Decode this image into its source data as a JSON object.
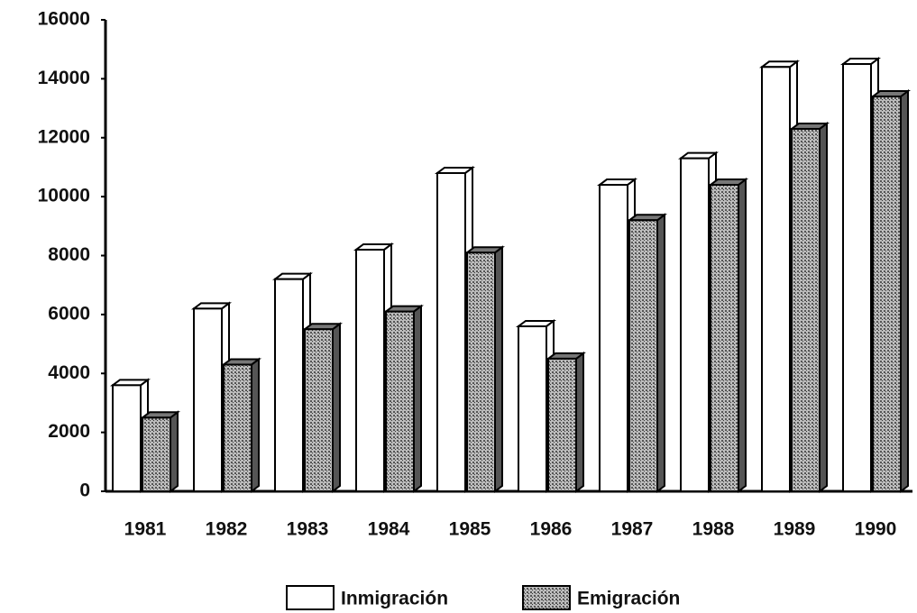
{
  "chart_data": {
    "type": "bar",
    "categories": [
      "1981",
      "1982",
      "1983",
      "1984",
      "1985",
      "1986",
      "1987",
      "1988",
      "1989",
      "1990"
    ],
    "series": [
      {
        "name": "Inmigración",
        "color": "#ffffff",
        "values": [
          3600,
          6200,
          7200,
          8200,
          10800,
          5600,
          10400,
          11300,
          14400,
          14500
        ]
      },
      {
        "name": "Emigración",
        "color": "#8a8a8a",
        "values": [
          2500,
          4300,
          5500,
          6100,
          8100,
          4500,
          9200,
          10400,
          12300,
          13400
        ]
      }
    ],
    "ylim": [
      0,
      16000
    ],
    "yticks": [
      0,
      2000,
      4000,
      6000,
      8000,
      10000,
      12000,
      14000,
      16000
    ],
    "legend": "bottom"
  }
}
